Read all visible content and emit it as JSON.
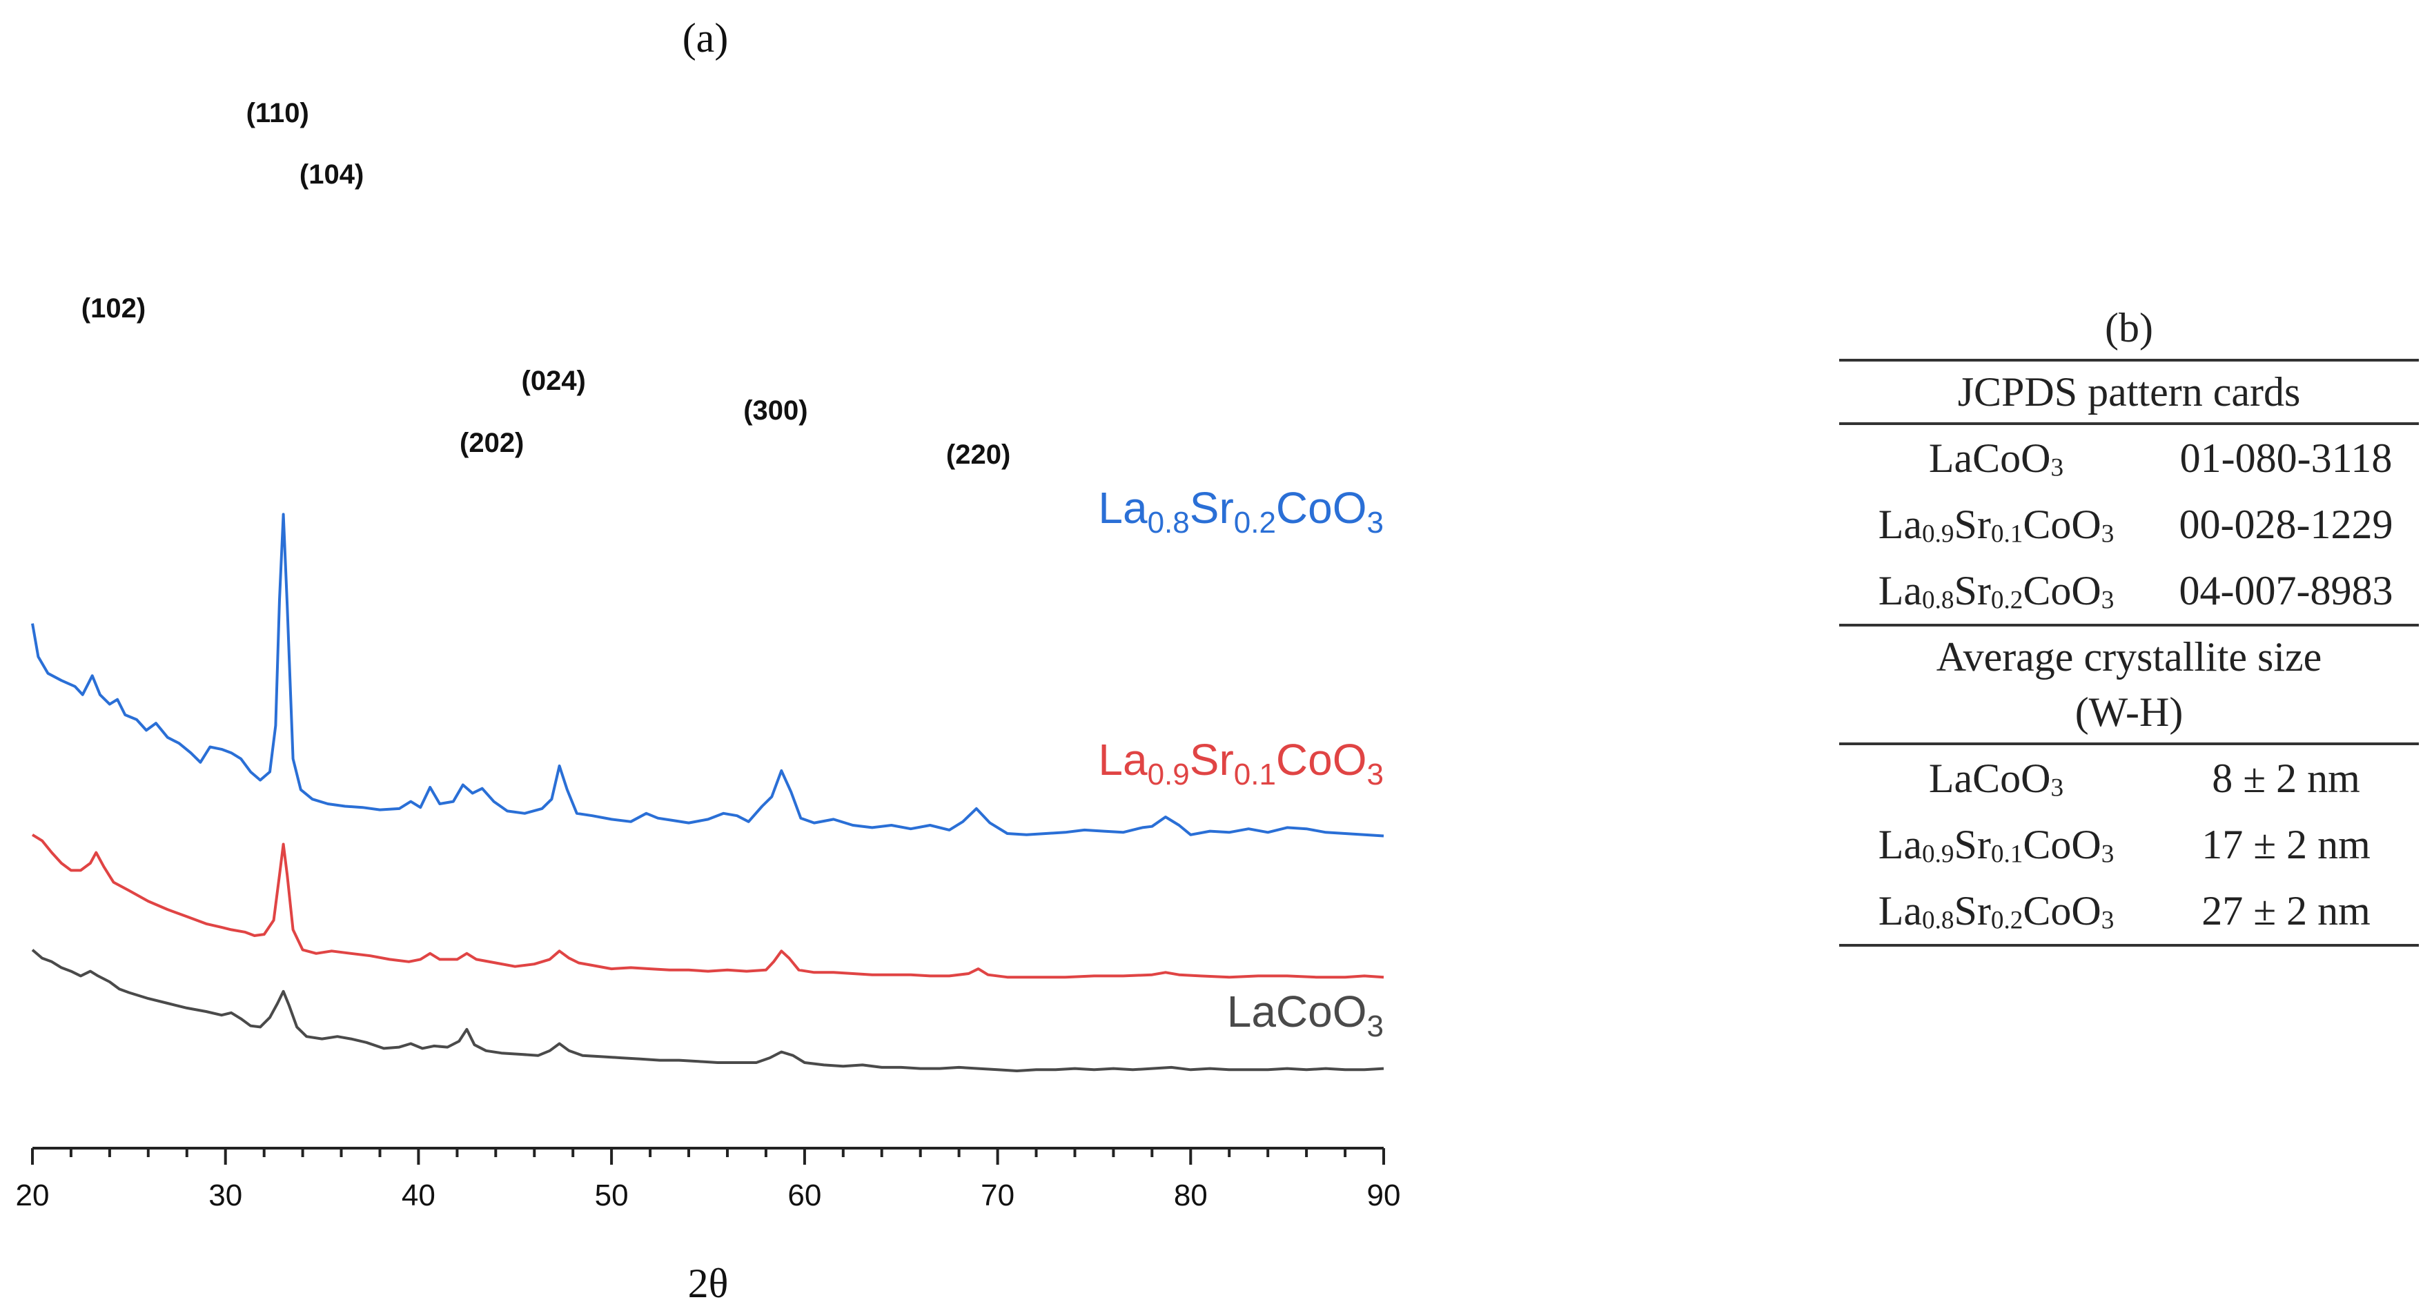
{
  "chart_data": {
    "type": "line",
    "panel_label": "(a)",
    "xlabel": "2θ",
    "ylabel": "",
    "xlim": [
      20,
      90
    ],
    "xticks": [
      20,
      30,
      40,
      50,
      60,
      70,
      80,
      90
    ],
    "series": [
      {
        "name": "La0.8Sr0.2CoO3",
        "label_main": [
          "La",
          "0.8",
          "Sr",
          "0.2",
          "CoO",
          "3"
        ],
        "color": "#2a6fd6",
        "offset": 2.0,
        "points": [
          [
            20.0,
            1.7
          ],
          [
            20.3,
            1.42
          ],
          [
            20.8,
            1.28
          ],
          [
            21.5,
            1.22
          ],
          [
            22.2,
            1.17
          ],
          [
            22.6,
            1.1
          ],
          [
            23.1,
            1.26
          ],
          [
            23.5,
            1.1
          ],
          [
            24.0,
            1.02
          ],
          [
            24.4,
            1.06
          ],
          [
            24.8,
            0.93
          ],
          [
            25.4,
            0.89
          ],
          [
            25.9,
            0.8
          ],
          [
            26.4,
            0.86
          ],
          [
            27.0,
            0.74
          ],
          [
            27.6,
            0.69
          ],
          [
            28.2,
            0.61
          ],
          [
            28.7,
            0.53
          ],
          [
            29.2,
            0.66
          ],
          [
            29.8,
            0.64
          ],
          [
            30.3,
            0.61
          ],
          [
            30.8,
            0.56
          ],
          [
            31.3,
            0.45
          ],
          [
            31.8,
            0.38
          ],
          [
            32.3,
            0.45
          ],
          [
            32.6,
            0.84
          ],
          [
            32.8,
            1.9
          ],
          [
            33.0,
            2.62
          ],
          [
            33.2,
            1.85
          ],
          [
            33.5,
            0.56
          ],
          [
            33.9,
            0.3
          ],
          [
            34.5,
            0.22
          ],
          [
            35.3,
            0.18
          ],
          [
            36.2,
            0.16
          ],
          [
            37.1,
            0.15
          ],
          [
            38.0,
            0.13
          ],
          [
            39.0,
            0.14
          ],
          [
            39.6,
            0.2
          ],
          [
            40.1,
            0.15
          ],
          [
            40.6,
            0.32
          ],
          [
            41.1,
            0.18
          ],
          [
            41.8,
            0.2
          ],
          [
            42.3,
            0.34
          ],
          [
            42.8,
            0.27
          ],
          [
            43.3,
            0.31
          ],
          [
            43.9,
            0.2
          ],
          [
            44.6,
            0.12
          ],
          [
            45.5,
            0.1
          ],
          [
            46.4,
            0.14
          ],
          [
            46.9,
            0.22
          ],
          [
            47.3,
            0.5
          ],
          [
            47.7,
            0.3
          ],
          [
            48.2,
            0.1
          ],
          [
            49.0,
            0.08
          ],
          [
            50.0,
            0.05
          ],
          [
            51.0,
            0.03
          ],
          [
            51.8,
            0.1
          ],
          [
            52.4,
            0.06
          ],
          [
            53.2,
            0.04
          ],
          [
            54.0,
            0.02
          ],
          [
            55.0,
            0.05
          ],
          [
            55.8,
            0.1
          ],
          [
            56.5,
            0.08
          ],
          [
            57.1,
            0.03
          ],
          [
            57.8,
            0.16
          ],
          [
            58.3,
            0.24
          ],
          [
            58.8,
            0.46
          ],
          [
            59.3,
            0.28
          ],
          [
            59.8,
            0.06
          ],
          [
            60.5,
            0.02
          ],
          [
            61.5,
            0.05
          ],
          [
            62.5,
            0.0
          ],
          [
            63.5,
            -0.02
          ],
          [
            64.5,
            0.0
          ],
          [
            65.5,
            -0.03
          ],
          [
            66.5,
            0.0
          ],
          [
            67.5,
            -0.04
          ],
          [
            68.2,
            0.03
          ],
          [
            68.9,
            0.14
          ],
          [
            69.6,
            0.02
          ],
          [
            70.5,
            -0.07
          ],
          [
            71.5,
            -0.08
          ],
          [
            72.5,
            -0.07
          ],
          [
            73.5,
            -0.06
          ],
          [
            74.5,
            -0.04
          ],
          [
            75.5,
            -0.05
          ],
          [
            76.5,
            -0.06
          ],
          [
            77.5,
            -0.02
          ],
          [
            78.0,
            -0.01
          ],
          [
            78.7,
            0.07
          ],
          [
            79.4,
            0.0
          ],
          [
            80.0,
            -0.08
          ],
          [
            81.0,
            -0.05
          ],
          [
            82.0,
            -0.06
          ],
          [
            83.0,
            -0.03
          ],
          [
            84.0,
            -0.06
          ],
          [
            85.0,
            -0.02
          ],
          [
            86.0,
            -0.03
          ],
          [
            87.0,
            -0.06
          ],
          [
            88.0,
            -0.07
          ],
          [
            89.0,
            -0.08
          ],
          [
            90.0,
            -0.09
          ]
        ]
      },
      {
        "name": "La0.9Sr0.1CoO3",
        "label_main": [
          "La",
          "0.9",
          "Sr",
          "0.1",
          "CoO",
          "3"
        ],
        "color": "#e04444",
        "offset": 0.82,
        "points": [
          [
            20.0,
            1.1
          ],
          [
            20.5,
            1.05
          ],
          [
            21.0,
            0.95
          ],
          [
            21.5,
            0.86
          ],
          [
            22.0,
            0.8
          ],
          [
            22.5,
            0.8
          ],
          [
            23.0,
            0.86
          ],
          [
            23.3,
            0.95
          ],
          [
            23.7,
            0.83
          ],
          [
            24.2,
            0.7
          ],
          [
            25.0,
            0.63
          ],
          [
            26.0,
            0.54
          ],
          [
            27.0,
            0.47
          ],
          [
            28.0,
            0.41
          ],
          [
            29.0,
            0.35
          ],
          [
            29.8,
            0.32
          ],
          [
            30.3,
            0.3
          ],
          [
            31.0,
            0.28
          ],
          [
            31.5,
            0.25
          ],
          [
            32.0,
            0.26
          ],
          [
            32.5,
            0.38
          ],
          [
            32.8,
            0.76
          ],
          [
            33.0,
            1.02
          ],
          [
            33.2,
            0.76
          ],
          [
            33.5,
            0.3
          ],
          [
            34.0,
            0.13
          ],
          [
            34.7,
            0.1
          ],
          [
            35.5,
            0.12
          ],
          [
            36.5,
            0.1
          ],
          [
            37.5,
            0.08
          ],
          [
            38.5,
            0.05
          ],
          [
            39.5,
            0.03
          ],
          [
            40.1,
            0.05
          ],
          [
            40.6,
            0.1
          ],
          [
            41.1,
            0.05
          ],
          [
            42.0,
            0.05
          ],
          [
            42.5,
            0.1
          ],
          [
            43.0,
            0.05
          ],
          [
            44.0,
            0.02
          ],
          [
            45.0,
            -0.01
          ],
          [
            46.0,
            0.01
          ],
          [
            46.8,
            0.05
          ],
          [
            47.3,
            0.12
          ],
          [
            47.8,
            0.06
          ],
          [
            48.3,
            0.02
          ],
          [
            49.0,
            0.0
          ],
          [
            50.0,
            -0.03
          ],
          [
            51.0,
            -0.02
          ],
          [
            52.0,
            -0.03
          ],
          [
            53.0,
            -0.04
          ],
          [
            54.0,
            -0.04
          ],
          [
            55.0,
            -0.05
          ],
          [
            56.0,
            -0.04
          ],
          [
            57.0,
            -0.05
          ],
          [
            58.0,
            -0.04
          ],
          [
            58.4,
            0.03
          ],
          [
            58.8,
            0.12
          ],
          [
            59.2,
            0.06
          ],
          [
            59.7,
            -0.04
          ],
          [
            60.5,
            -0.06
          ],
          [
            61.5,
            -0.06
          ],
          [
            62.5,
            -0.07
          ],
          [
            63.5,
            -0.08
          ],
          [
            64.5,
            -0.08
          ],
          [
            65.5,
            -0.08
          ],
          [
            66.5,
            -0.09
          ],
          [
            67.5,
            -0.09
          ],
          [
            68.5,
            -0.07
          ],
          [
            69.0,
            -0.03
          ],
          [
            69.5,
            -0.08
          ],
          [
            70.5,
            -0.1
          ],
          [
            72.0,
            -0.1
          ],
          [
            73.5,
            -0.1
          ],
          [
            75.0,
            -0.09
          ],
          [
            76.5,
            -0.09
          ],
          [
            78.0,
            -0.08
          ],
          [
            78.7,
            -0.06
          ],
          [
            79.4,
            -0.08
          ],
          [
            80.5,
            -0.09
          ],
          [
            82.0,
            -0.1
          ],
          [
            83.5,
            -0.09
          ],
          [
            85.0,
            -0.09
          ],
          [
            86.5,
            -0.1
          ],
          [
            88.0,
            -0.1
          ],
          [
            89.0,
            -0.09
          ],
          [
            90.0,
            -0.1
          ]
        ]
      },
      {
        "name": "LaCoO3",
        "label_main": [
          "LaCoO",
          "3"
        ],
        "color": "#4a4a4a",
        "offset": 0.0,
        "points": [
          [
            20.0,
            0.95
          ],
          [
            20.5,
            0.88
          ],
          [
            21.0,
            0.85
          ],
          [
            21.5,
            0.8
          ],
          [
            22.0,
            0.77
          ],
          [
            22.5,
            0.73
          ],
          [
            23.0,
            0.77
          ],
          [
            23.4,
            0.73
          ],
          [
            24.0,
            0.68
          ],
          [
            24.5,
            0.62
          ],
          [
            25.0,
            0.59
          ],
          [
            26.0,
            0.54
          ],
          [
            27.0,
            0.5
          ],
          [
            28.0,
            0.46
          ],
          [
            29.0,
            0.43
          ],
          [
            29.8,
            0.4
          ],
          [
            30.3,
            0.42
          ],
          [
            30.8,
            0.37
          ],
          [
            31.3,
            0.31
          ],
          [
            31.8,
            0.3
          ],
          [
            32.3,
            0.38
          ],
          [
            32.7,
            0.5
          ],
          [
            33.0,
            0.6
          ],
          [
            33.3,
            0.48
          ],
          [
            33.7,
            0.3
          ],
          [
            34.2,
            0.22
          ],
          [
            35.0,
            0.2
          ],
          [
            35.8,
            0.22
          ],
          [
            36.5,
            0.2
          ],
          [
            37.3,
            0.17
          ],
          [
            38.2,
            0.12
          ],
          [
            39.0,
            0.13
          ],
          [
            39.6,
            0.16
          ],
          [
            40.2,
            0.12
          ],
          [
            40.8,
            0.14
          ],
          [
            41.5,
            0.13
          ],
          [
            42.1,
            0.18
          ],
          [
            42.5,
            0.28
          ],
          [
            42.9,
            0.15
          ],
          [
            43.5,
            0.1
          ],
          [
            44.3,
            0.08
          ],
          [
            45.3,
            0.07
          ],
          [
            46.2,
            0.06
          ],
          [
            46.8,
            0.1
          ],
          [
            47.3,
            0.16
          ],
          [
            47.8,
            0.1
          ],
          [
            48.5,
            0.06
          ],
          [
            49.5,
            0.05
          ],
          [
            50.5,
            0.04
          ],
          [
            51.5,
            0.03
          ],
          [
            52.5,
            0.02
          ],
          [
            53.5,
            0.02
          ],
          [
            54.5,
            0.01
          ],
          [
            55.5,
            0.0
          ],
          [
            56.5,
            0.0
          ],
          [
            57.5,
            0.0
          ],
          [
            58.2,
            0.04
          ],
          [
            58.8,
            0.09
          ],
          [
            59.4,
            0.06
          ],
          [
            60.0,
            0.0
          ],
          [
            61.0,
            -0.02
          ],
          [
            62.0,
            -0.03
          ],
          [
            63.0,
            -0.02
          ],
          [
            64.0,
            -0.04
          ],
          [
            65.0,
            -0.04
          ],
          [
            66.0,
            -0.05
          ],
          [
            67.0,
            -0.05
          ],
          [
            68.0,
            -0.04
          ],
          [
            69.0,
            -0.05
          ],
          [
            70.0,
            -0.06
          ],
          [
            71.0,
            -0.07
          ],
          [
            72.0,
            -0.06
          ],
          [
            73.0,
            -0.06
          ],
          [
            74.0,
            -0.05
          ],
          [
            75.0,
            -0.06
          ],
          [
            76.0,
            -0.05
          ],
          [
            77.0,
            -0.06
          ],
          [
            78.0,
            -0.05
          ],
          [
            79.0,
            -0.04
          ],
          [
            80.0,
            -0.06
          ],
          [
            81.0,
            -0.05
          ],
          [
            82.0,
            -0.06
          ],
          [
            83.0,
            -0.06
          ],
          [
            84.0,
            -0.06
          ],
          [
            85.0,
            -0.05
          ],
          [
            86.0,
            -0.06
          ],
          [
            87.0,
            -0.05
          ],
          [
            88.0,
            -0.06
          ],
          [
            89.0,
            -0.06
          ],
          [
            90.0,
            -0.05
          ]
        ]
      }
    ],
    "annotations": [
      {
        "text": "(102)",
        "x": 24.2
      },
      {
        "text": "(110)",
        "x": 32.7
      },
      {
        "text": "(104)",
        "x": 35.5
      },
      {
        "text": "(024)",
        "x": 47.0
      },
      {
        "text": "(202)",
        "x": 43.8
      },
      {
        "text": "(300)",
        "x": 58.5
      },
      {
        "text": "(220)",
        "x": 69.0
      }
    ]
  },
  "table_b": {
    "caption": "(b)",
    "section1_title": "JCPDS pattern cards",
    "section1_rows": [
      {
        "compound": "LaCoO3",
        "value": "01-080-3118"
      },
      {
        "compound": "La0.9Sr0.1CoO3",
        "value": "00-028-1229"
      },
      {
        "compound": "La0.8Sr0.2CoO3",
        "value": "04-007-8983"
      }
    ],
    "section2_title_line1": "Average crystallite size",
    "section2_title_line2": "(W-H)",
    "section2_rows": [
      {
        "compound": "LaCoO3",
        "value": "8 ± 2 nm"
      },
      {
        "compound": "La0.9Sr0.1CoO3",
        "value": "17 ± 2 nm"
      },
      {
        "compound": "La0.8Sr0.2CoO3",
        "value": "27 ± 2 nm"
      }
    ]
  },
  "formula_parts": {
    "LaCoO3": [
      "LaCoO",
      "3"
    ],
    "La0.9Sr0.1CoO3": [
      "La",
      "0.9",
      "Sr",
      "0.1",
      "CoO",
      "3"
    ],
    "La0.8Sr0.2CoO3": [
      "La",
      "0.8",
      "Sr",
      "0.2",
      "CoO",
      "3"
    ]
  }
}
